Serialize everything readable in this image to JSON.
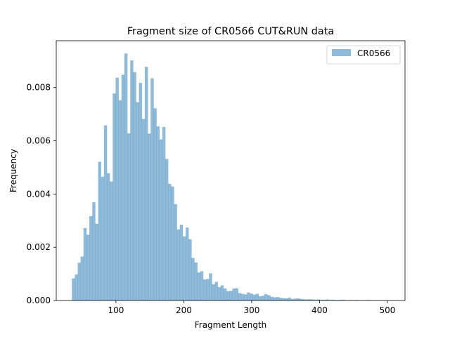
{
  "chart_data": {
    "type": "bar",
    "title": "Fragment size of CR0566 CUT&RUN data",
    "xlabel": "Fragment Length",
    "ylabel": "Frequency",
    "xlim": [
      12,
      526
    ],
    "ylim": [
      0,
      0.00976
    ],
    "x_ticks": [
      "100",
      "200",
      "300",
      "400",
      "500"
    ],
    "x_tick_values": [
      100,
      200,
      300,
      400,
      500
    ],
    "y_ticks": [
      "0.000",
      "0.002",
      "0.004",
      "0.006",
      "0.008"
    ],
    "y_tick_values": [
      0,
      0.002,
      0.004,
      0.006,
      0.008
    ],
    "grid": false,
    "legend": {
      "position": "top-right",
      "entries": [
        "CR0566"
      ]
    },
    "colors": {
      "bars": "#1f77b4",
      "bar_opacity": 0.5
    },
    "bin_start": 35,
    "bin_width": 4.3,
    "series": [
      {
        "name": "CR0566",
        "values": [
          0.00083,
          0.00098,
          0.00142,
          0.00165,
          0.00272,
          0.00247,
          0.00317,
          0.00369,
          0.00288,
          0.00521,
          0.00465,
          0.00658,
          0.00478,
          0.00447,
          0.00778,
          0.00837,
          0.00752,
          0.00848,
          0.00928,
          0.00628,
          0.00902,
          0.00858,
          0.00745,
          0.00818,
          0.00682,
          0.00878,
          0.00627,
          0.00835,
          0.00722,
          0.00654,
          0.00605,
          0.00652,
          0.00532,
          0.00438,
          0.00428,
          0.00362,
          0.00267,
          0.00285,
          0.00241,
          0.00274,
          0.0023,
          0.0016,
          0.00143,
          0.00105,
          0.0011,
          0.00079,
          0.00081,
          0.00102,
          0.00061,
          0.0007,
          0.0005,
          0.00057,
          0.00045,
          0.00035,
          0.00036,
          0.00045,
          0.00046,
          0.00028,
          0.00025,
          0.00023,
          0.0003,
          0.00026,
          0.00022,
          0.00025,
          0.00016,
          0.00018,
          0.00024,
          0.0002,
          0.00014,
          0.00012,
          0.00013,
          0.0001,
          9e-05,
          8e-05,
          0.00011,
          6e-05,
          7e-05,
          8e-05,
          6e-05,
          5e-05,
          4e-05,
          5e-05,
          4e-05,
          3e-05,
          4e-05,
          3e-05,
          3e-05,
          4e-05,
          2e-05,
          3e-05,
          2e-05,
          2e-05,
          3e-05,
          2e-05,
          1e-05,
          2e-05,
          1e-05,
          2e-05,
          1e-05,
          1e-05,
          1e-05,
          2e-05,
          1e-05,
          1e-05,
          1e-05,
          1e-05,
          1e-05,
          1e-05,
          1e-05,
          1e-05
        ]
      }
    ]
  }
}
